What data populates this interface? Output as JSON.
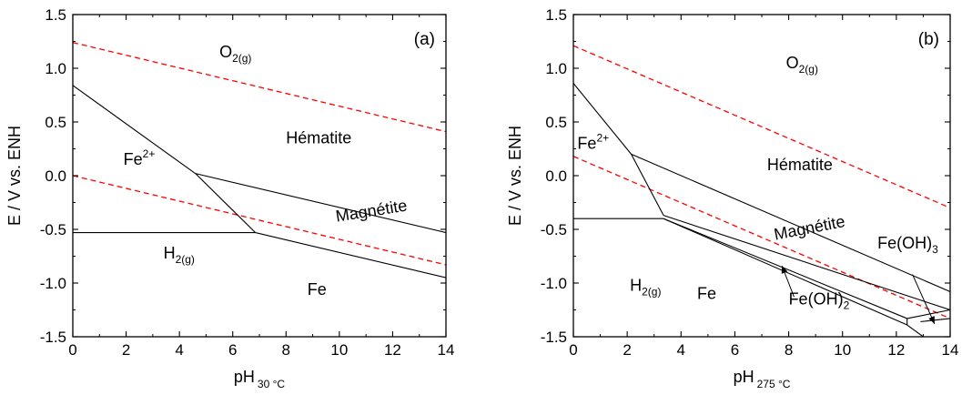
{
  "chart_data": [
    {
      "type": "line",
      "panel": "(a)",
      "xlabel": {
        "main": "pH",
        "sub": "30 °C"
      },
      "ylabel": "E / V vs. ENH",
      "xlim": [
        0,
        14
      ],
      "ylim": [
        -1.5,
        1.5
      ],
      "x_ticks": [
        "0",
        "2",
        "4",
        "6",
        "8",
        "10",
        "12",
        "14"
      ],
      "y_ticks": [
        "1.5",
        "1.0",
        "0.5",
        "0.0",
        "-0.5",
        "-1.0",
        "-1.5"
      ],
      "x_tick_values": [
        0,
        2,
        4,
        6,
        8,
        10,
        12,
        14
      ],
      "y_tick_values": [
        1.5,
        1.0,
        0.5,
        0.0,
        -0.5,
        -1.0,
        -1.5
      ],
      "solid_lines": [
        [
          [
            0,
            0.84
          ],
          [
            4.6,
            0.02
          ]
        ],
        [
          [
            4.6,
            0.02
          ],
          [
            6.85,
            -0.53
          ]
        ],
        [
          [
            0,
            -0.53
          ],
          [
            6.85,
            -0.53
          ]
        ],
        [
          [
            4.6,
            0.02
          ],
          [
            14,
            -0.53
          ]
        ],
        [
          [
            6.85,
            -0.53
          ],
          [
            14,
            -0.95
          ]
        ]
      ],
      "dashed_lines": [
        [
          [
            0,
            1.24
          ],
          [
            14,
            0.41
          ]
        ],
        [
          [
            0,
            0.0
          ],
          [
            14,
            -0.83
          ]
        ]
      ],
      "line_color": "#000000",
      "dashed_color": "#ff0000",
      "labels": [
        {
          "base": "O",
          "sub": "2(g)",
          "x": 5.5,
          "y": 1.1
        },
        {
          "base": "Hématite",
          "x": 8.0,
          "y": 0.3
        },
        {
          "base": "Fe",
          "sup": "2+",
          "x": 1.9,
          "y": 0.1
        },
        {
          "base": "Magnétite",
          "x": 9.9,
          "y": -0.43,
          "rotate": -9
        },
        {
          "base": "H",
          "sub": "2(g)",
          "x": 3.4,
          "y": -0.77
        },
        {
          "base": "Fe",
          "x": 8.8,
          "y": -1.11
        }
      ]
    },
    {
      "type": "line",
      "panel": "(b)",
      "xlabel": {
        "main": "pH",
        "sub": "275 °C"
      },
      "ylabel": "E / V vs. ENH",
      "xlim": [
        0,
        14
      ],
      "ylim": [
        -1.5,
        1.5
      ],
      "x_ticks": [
        "0",
        "2",
        "4",
        "6",
        "8",
        "10",
        "12",
        "14"
      ],
      "y_ticks": [
        "1.5",
        "1.0",
        "0.5",
        "0.0",
        "-0.5",
        "-1.0",
        "-1.5"
      ],
      "x_tick_values": [
        0,
        2,
        4,
        6,
        8,
        10,
        12,
        14
      ],
      "y_tick_values": [
        1.5,
        1.0,
        0.5,
        0.0,
        -0.5,
        -1.0,
        -1.5
      ],
      "solid_lines": [
        [
          [
            0,
            0.86
          ],
          [
            2.15,
            0.2
          ]
        ],
        [
          [
            2.15,
            0.2
          ],
          [
            3.35,
            -0.37
          ]
        ],
        [
          [
            0,
            -0.4
          ],
          [
            3.35,
            -0.4
          ]
        ],
        [
          [
            2.15,
            0.2
          ],
          [
            14,
            -1.08
          ]
        ],
        [
          [
            3.35,
            -0.37
          ],
          [
            14,
            -1.25
          ]
        ],
        [
          [
            3.35,
            -0.4
          ],
          [
            12.4,
            -1.33
          ]
        ],
        [
          [
            12.4,
            -1.33
          ],
          [
            12.4,
            -1.39
          ]
        ],
        [
          [
            3.35,
            -0.4
          ],
          [
            12.4,
            -1.39
          ]
        ],
        [
          [
            12.4,
            -1.39
          ],
          [
            13.0,
            -1.5
          ]
        ],
        [
          [
            12.4,
            -1.33
          ],
          [
            14,
            -1.25
          ]
        ],
        [
          [
            12.9,
            -1.36
          ],
          [
            14,
            -1.33
          ]
        ]
      ],
      "dashed_lines": [
        [
          [
            0,
            1.21
          ],
          [
            14,
            -0.3
          ]
        ],
        [
          [
            0,
            0.18
          ],
          [
            14,
            -1.33
          ]
        ]
      ],
      "line_color": "#000000",
      "dashed_color": "#ff0000",
      "labels": [
        {
          "base": "O",
          "sub": "2(g)",
          "x": 7.9,
          "y": 1.0
        },
        {
          "base": "Hématite",
          "x": 7.2,
          "y": 0.05
        },
        {
          "base": "Fe",
          "sup": "2+",
          "x": 0.15,
          "y": 0.25
        },
        {
          "base": "Magnétite",
          "x": 7.5,
          "y": -0.6,
          "rotate": -11
        },
        {
          "base": "Fe(OH)",
          "sub": "3",
          "x": 11.3,
          "y": -0.68
        },
        {
          "base": "Fe(OH)",
          "sub": "2",
          "x": 8.0,
          "y": -1.2
        },
        {
          "base": "H",
          "sub": "2(g)",
          "x": 2.1,
          "y": -1.07
        },
        {
          "base": "Fe",
          "x": 4.6,
          "y": -1.15
        }
      ],
      "arrows": [
        {
          "from": [
            8.2,
            -1.13
          ],
          "to": [
            7.75,
            -0.84
          ]
        },
        {
          "from": [
            12.6,
            -0.92
          ],
          "to": [
            13.42,
            -1.38
          ]
        }
      ]
    }
  ]
}
